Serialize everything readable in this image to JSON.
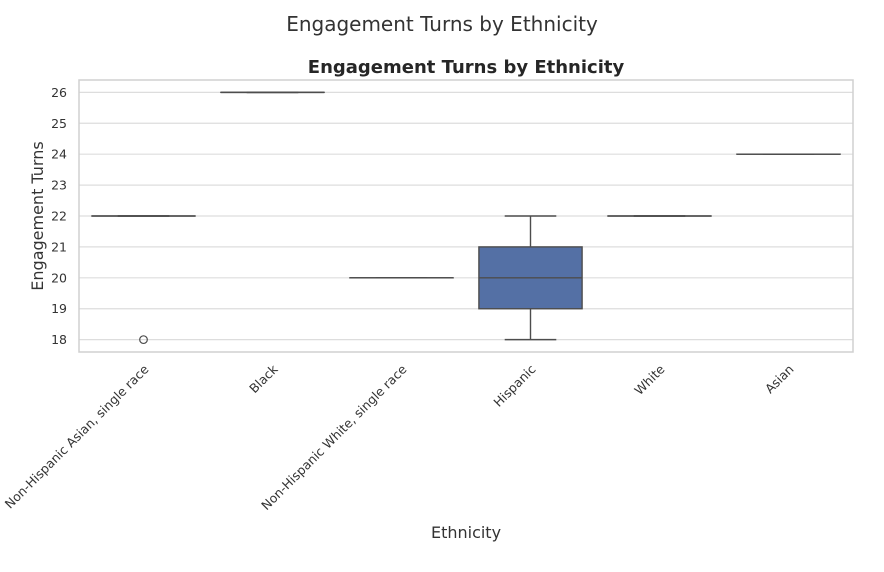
{
  "figure": {
    "suptitle": "Engagement Turns by Ethnicity"
  },
  "colors": {
    "box_fill": "#5470a5",
    "line": "#4d4d4d",
    "grid": "#dddddd",
    "frame": "#d0d0d0",
    "text": "#333333"
  },
  "chart_data": {
    "type": "box",
    "title": "Engagement Turns by Ethnicity",
    "xlabel": "Ethnicity",
    "ylabel": "Engagement Turns",
    "ylim": [
      17.6,
      26.4
    ],
    "yticks": [
      18,
      19,
      20,
      21,
      22,
      23,
      24,
      25,
      26
    ],
    "grid": true,
    "categories": [
      "Non-Hispanic Asian, single race",
      "Black",
      "Non-Hispanic White, single race",
      "Hispanic",
      "White",
      "Asian"
    ],
    "boxes": [
      {
        "category": "Non-Hispanic Asian, single race",
        "whisker_low": 22,
        "q1": 22,
        "median": 22,
        "q3": 22,
        "whisker_high": 22,
        "outliers": [
          18
        ]
      },
      {
        "category": "Black",
        "whisker_low": 26,
        "q1": 26,
        "median": 26,
        "q3": 26,
        "whisker_high": 26,
        "outliers": []
      },
      {
        "category": "Non-Hispanic White, single race",
        "whisker_low": 20,
        "q1": 20,
        "median": 20,
        "q3": 20,
        "whisker_high": 20,
        "outliers": []
      },
      {
        "category": "Hispanic",
        "whisker_low": 18,
        "q1": 19,
        "median": 20,
        "q3": 21,
        "whisker_high": 22,
        "outliers": []
      },
      {
        "category": "White",
        "whisker_low": 22,
        "q1": 22,
        "median": 22,
        "q3": 22,
        "whisker_high": 22,
        "outliers": []
      },
      {
        "category": "Asian",
        "whisker_low": 24,
        "q1": 24,
        "median": 24,
        "q3": 24,
        "whisker_high": 24,
        "outliers": []
      }
    ]
  }
}
